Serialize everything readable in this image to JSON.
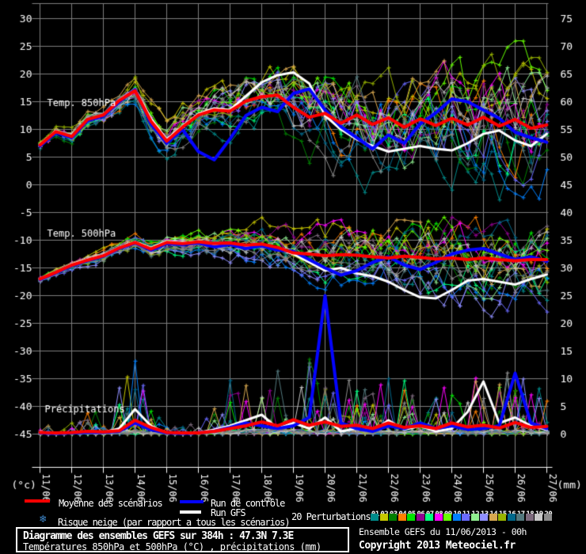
{
  "axes": {
    "left_unit_label": "(°c)",
    "right_unit_label": "(mm)",
    "left_tick_labels": [
      "30",
      "25",
      "20",
      "15",
      "10",
      "5",
      "0",
      "-5",
      "-10",
      "-15",
      "-20",
      "-25",
      "-30",
      "-35",
      "-40",
      "-45"
    ],
    "left_tick_values": [
      30,
      25,
      20,
      15,
      10,
      5,
      0,
      -5,
      -10,
      -15,
      -20,
      -25,
      -30,
      -35,
      -40,
      -45
    ],
    "right_tick_labels": [
      "75",
      "70",
      "65",
      "60",
      "55",
      "50",
      "45",
      "40",
      "35",
      "30",
      "25",
      "20",
      "15",
      "10",
      "5",
      "0"
    ],
    "x_tick_labels": [
      "11/06",
      "12/06",
      "13/06",
      "14/06",
      "15/06",
      "16/06",
      "17/06",
      "18/06",
      "19/06",
      "20/06",
      "21/06",
      "22/06",
      "23/06",
      "24/06",
      "25/06",
      "26/06",
      "27/06"
    ],
    "grid_color": "#7e7e7e",
    "axis_color": "#ffffff"
  },
  "chart_data": {
    "type": "line",
    "x_step_hours": 12,
    "forecast_hours": 384,
    "run_date": "11/06/2013 - 00h",
    "location": "47.3N 7.3E",
    "panels": [
      {
        "title": "Temp. 850hPa",
        "unit": "°C",
        "series": [
          {
            "name": "Moyenne des scénarios",
            "color": "#ff0000",
            "width": 4,
            "values": [
              7.2,
              9.6,
              8.7,
              11.8,
              12.6,
              15.2,
              17.0,
              11.5,
              7.9,
              10.4,
              12.6,
              13.5,
              13.3,
              15.1,
              15.9,
              16.2,
              14.0,
              12.2,
              12.9,
              11.1,
              12.6,
              10.9,
              12.1,
              10.4,
              11.9,
              10.7,
              12.0,
              10.8,
              12.2,
              10.6,
              11.8,
              10.2,
              10.8
            ]
          },
          {
            "name": "Run de contrôle",
            "color": "#0404ff",
            "width": 4,
            "values": [
              7.0,
              9.4,
              8.5,
              11.6,
              12.4,
              15.0,
              17.2,
              11.0,
              7.5,
              10.0,
              6.0,
              4.5,
              8.3,
              12.5,
              14.0,
              13.2,
              16.5,
              17.3,
              13.5,
              10.5,
              8.5,
              6.5,
              9.0,
              7.5,
              11.0,
              13.0,
              15.5,
              15.0,
              13.5,
              12.0,
              9.5,
              8.5,
              7.7
            ]
          },
          {
            "name": "Run GFS",
            "color": "#ffffff",
            "width": 3,
            "values": [
              7.3,
              9.7,
              8.6,
              11.7,
              12.5,
              15.3,
              17.3,
              12.0,
              8.2,
              10.6,
              12.8,
              13.8,
              13.5,
              16.0,
              18.5,
              19.8,
              20.3,
              18.3,
              12.5,
              10.0,
              8.2,
              7.0,
              6.0,
              6.5,
              7.0,
              6.5,
              6.2,
              7.5,
              9.2,
              9.8,
              8.0,
              7.0,
              9.2
            ]
          }
        ],
        "member_spread": [
          0.4,
          0.6,
          0.8,
          1.0,
          1.2,
          1.4,
          1.8,
          2.2,
          2.4,
          2.5,
          2.6,
          2.8,
          3.0,
          3.2,
          3.5,
          4.0,
          4.5,
          5.0,
          5.2,
          5.5,
          5.8,
          6.0,
          6.2,
          6.4,
          6.5,
          6.8,
          7.0,
          7.0,
          7.0,
          7.0,
          7.0,
          7.0,
          7.0
        ],
        "value_clamp": [
          -3,
          26
        ]
      },
      {
        "title": "Temp. 500hPa",
        "unit": "°C",
        "series": [
          {
            "name": "Moyenne des scénarios",
            "color": "#ff0000",
            "width": 4,
            "values": [
              -17.0,
              -15.8,
              -14.5,
              -13.6,
              -12.8,
              -11.4,
              -10.4,
              -11.6,
              -10.4,
              -10.6,
              -10.3,
              -10.6,
              -10.5,
              -10.9,
              -10.7,
              -11.3,
              -12.3,
              -12.5,
              -12.8,
              -12.6,
              -12.7,
              -13.0,
              -13.2,
              -12.9,
              -13.1,
              -13.4,
              -13.2,
              -13.5,
              -13.2,
              -13.5,
              -13.7,
              -13.5,
              -13.5
            ]
          },
          {
            "name": "Run de contrôle",
            "color": "#0404ff",
            "width": 4,
            "values": [
              -17.1,
              -15.9,
              -14.6,
              -13.7,
              -12.9,
              -11.5,
              -10.5,
              -11.8,
              -10.6,
              -10.8,
              -10.5,
              -11.2,
              -10.8,
              -11.5,
              -11.0,
              -11.8,
              -12.0,
              -13.5,
              -15.0,
              -16.3,
              -15.5,
              -14.0,
              -13.0,
              -14.5,
              -15.3,
              -14.0,
              -12.5,
              -11.8,
              -11.5,
              -12.5,
              -13.5,
              -13.0,
              -13.8
            ]
          },
          {
            "name": "Run GFS",
            "color": "#ffffff",
            "width": 3,
            "values": [
              -17.0,
              -15.8,
              -14.4,
              -13.5,
              -12.7,
              -11.3,
              -10.3,
              -11.4,
              -10.2,
              -10.5,
              -10.2,
              -10.8,
              -10.6,
              -11.0,
              -10.8,
              -11.5,
              -12.5,
              -14.0,
              -15.5,
              -15.0,
              -16.0,
              -16.5,
              -17.5,
              -19.0,
              -20.3,
              -20.5,
              -19.0,
              -17.3,
              -17.0,
              -17.5,
              -18.0,
              -17.0,
              -16.2
            ]
          }
        ],
        "member_spread": [
          0.3,
          0.4,
          0.5,
          0.6,
          0.7,
          0.8,
          0.9,
          1.0,
          1.1,
          1.2,
          1.3,
          1.5,
          1.7,
          1.9,
          2.1,
          2.3,
          2.6,
          2.9,
          3.2,
          3.5,
          3.7,
          3.9,
          4.1,
          4.3,
          4.4,
          4.5,
          4.6,
          4.7,
          4.8,
          4.9,
          5.0,
          5.0,
          5.0
        ],
        "value_clamp": [
          -30.5,
          -5.8
        ]
      },
      {
        "title": "Précipitations",
        "unit": "mm",
        "series": [
          {
            "name": "Moyenne des scénarios",
            "color": "#ff0000",
            "width": 4,
            "values": [
              0.3,
              0.2,
              0.3,
              0.5,
              0.4,
              0.6,
              2.5,
              1.2,
              0.3,
              0.2,
              0.2,
              0.5,
              1.0,
              1.5,
              2.2,
              1.5,
              2.6,
              1.6,
              2.2,
              1.4,
              1.6,
              1.0,
              2.0,
              1.2,
              1.5,
              1.0,
              2.0,
              1.3,
              1.6,
              1.1,
              2.1,
              1.2,
              1.4
            ]
          },
          {
            "name": "Run de contrôle",
            "color": "#0404ff",
            "width": 4,
            "values": [
              0.2,
              0.1,
              0.2,
              0.3,
              0.3,
              0.5,
              2.0,
              0.8,
              0.2,
              0.1,
              0.2,
              0.5,
              1.2,
              2.0,
              1.5,
              1.0,
              1.5,
              3.0,
              25.0,
              2.0,
              1.0,
              0.5,
              1.5,
              1.0,
              2.0,
              1.0,
              1.5,
              0.8,
              1.0,
              1.5,
              11.0,
              2.0,
              1.0
            ]
          },
          {
            "name": "Run GFS",
            "color": "#ffffff",
            "width": 3,
            "values": [
              0.2,
              0.1,
              0.2,
              0.4,
              0.3,
              1.0,
              4.5,
              1.5,
              0.2,
              0.1,
              0.3,
              0.8,
              1.5,
              2.5,
              3.5,
              1.0,
              2.0,
              1.0,
              3.0,
              0.5,
              1.0,
              0.5,
              2.5,
              0.8,
              1.5,
              0.5,
              1.0,
              4.0,
              9.5,
              2.0,
              3.0,
              1.5,
              0.8
            ]
          }
        ],
        "member_activity": [
          0.2,
          0.1,
          0.2,
          0.3,
          0.3,
          0.6,
          1.0,
          0.5,
          0.1,
          0.1,
          0.2,
          0.5,
          0.8,
          1.0,
          1.0,
          0.9,
          1.0,
          1.0,
          1.0,
          0.8,
          0.7,
          0.6,
          0.8,
          0.7,
          0.8,
          0.7,
          0.8,
          0.7,
          0.8,
          0.9,
          0.9,
          0.8,
          0.7
        ]
      }
    ],
    "members": {
      "count": 20,
      "ids": [
        "01",
        "02",
        "03",
        "04",
        "05",
        "06",
        "07",
        "08",
        "09",
        "10",
        "11",
        "12",
        "13",
        "14",
        "15",
        "16",
        "17",
        "18",
        "19",
        "20"
      ],
      "colors": [
        "#008b8b",
        "#c8c800",
        "#008000",
        "#ff8000",
        "#00e400",
        "#900090",
        "#00ff7f",
        "#ff00ff",
        "#66ff00",
        "#0080ff",
        "#6a6aff",
        "#90ee90",
        "#9090ff",
        "#d8a850",
        "#98b400",
        "#00688b",
        "#53787d",
        "#7d6a7d",
        "#c8c8c8",
        "#8c8c8c"
      ],
      "seed": 7,
      "persistence": 0.72,
      "amplitude": 1.5,
      "bias_amplitude": 1.8
    }
  },
  "legend": {
    "mean_label": "Moyenne des scénarios",
    "mean_color": "#ff0000",
    "control_label": "Run de contrôle",
    "control_color": "#0404ff",
    "gfs_label": "Run GFS",
    "gfs_color": "#ffffff",
    "snow_icon": "❄",
    "snow_icon_color": "#3d85c8",
    "snow_label": "Risque neige (par rapport a tous les scénarios)",
    "perturbations_label": "20 Perturbations"
  },
  "footer": {
    "box_title": "Diagramme des ensembles GEFS sur 384h : 47.3N 7.3E",
    "box_subtitle": "Températures 850hPa et 500hPa (°C) , précipitations (mm)",
    "run_info": "Ensemble GEFS du 11/06/2013 - 00h",
    "copyright": "Copyright 2013 Meteociel.fr"
  }
}
